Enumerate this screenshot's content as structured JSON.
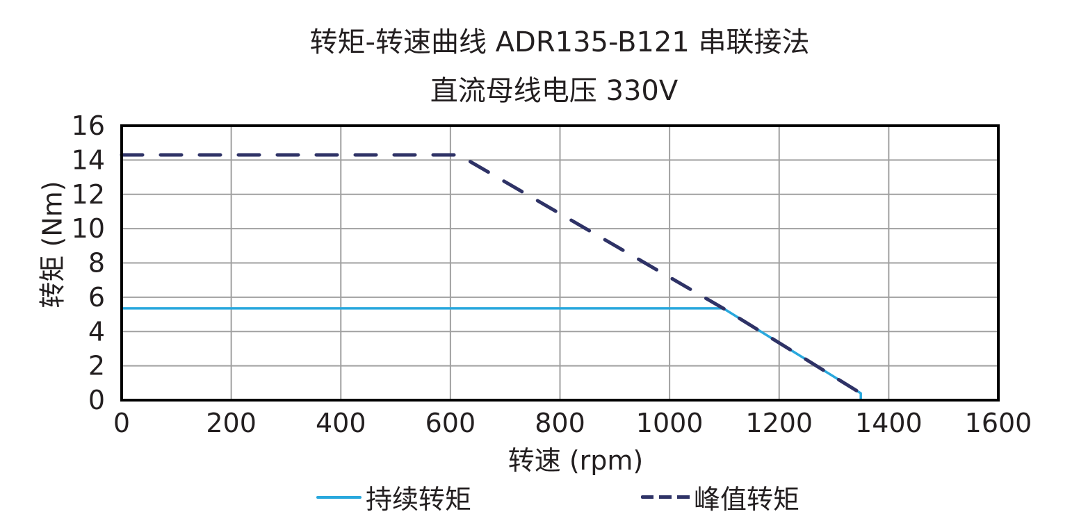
{
  "title": {
    "line1": "转矩-转速曲线 ADR135-B121 串联接法",
    "line2": "直流母线电压 330V"
  },
  "colors": {
    "continuous": "#29a8dd",
    "peak": "#2e3266",
    "grid": "#a0a0a0",
    "axis": "#000000"
  },
  "chart_data": {
    "type": "line",
    "title": "转矩-转速曲线 ADR135-B121 串联接法 / 直流母线电压 330V",
    "xlabel": "转速 (rpm)",
    "ylabel": "转矩 (Nm)",
    "xlim": [
      0,
      1600
    ],
    "ylim": [
      0,
      16
    ],
    "xticks": [
      0,
      200,
      400,
      600,
      800,
      1000,
      1200,
      1400,
      1600
    ],
    "yticks": [
      0,
      2,
      4,
      6,
      8,
      10,
      12,
      14,
      16
    ],
    "grid": true,
    "legend_position": "bottom",
    "series": [
      {
        "name": "持续转矩",
        "style": "solid",
        "x": [
          0,
          1098,
          1349,
          1349
        ],
        "y": [
          5.35,
          5.35,
          0.4,
          0
        ]
      },
      {
        "name": "峰值转矩",
        "style": "dashed",
        "x": [
          0,
          615,
          1098,
          1349
        ],
        "y": [
          14.3,
          14.3,
          5.35,
          0.4
        ]
      }
    ]
  },
  "legend": {
    "continuous_label": "持续转矩",
    "peak_label": "峰值转矩"
  }
}
